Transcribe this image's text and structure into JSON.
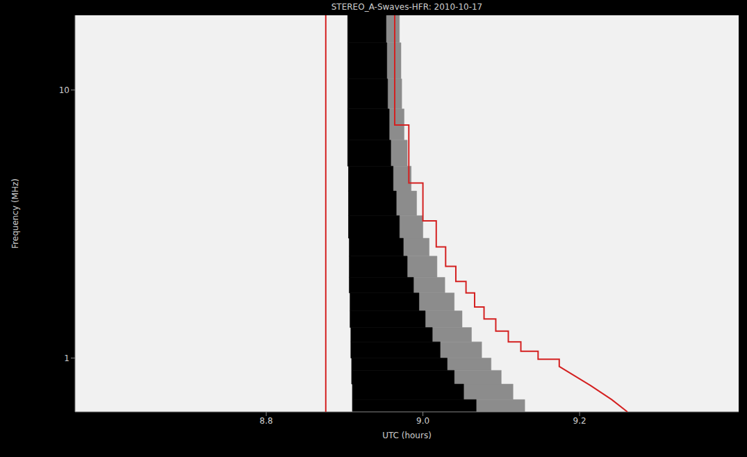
{
  "chart_data": {
    "type": "heatmap",
    "title": "STEREO_A-Swaves-HFR: 2010-10-17",
    "x_label": "UTC (hours)",
    "y_label": "Frequency (MHz)",
    "log": "y",
    "xlim": [
      8.556,
      9.403
    ],
    "ylim": [
      0.63,
      19
    ],
    "xticks": [
      8.8,
      {
        "value": 9,
        "label": "9.0"
      },
      9.2
    ],
    "yticks": [
      1,
      10
    ],
    "heatmap": {
      "freq_edges": [
        0.63,
        0.7,
        0.8,
        0.9,
        1.0,
        1.15,
        1.3,
        1.5,
        1.75,
        2.0,
        2.4,
        2.8,
        3.4,
        4.2,
        5.2,
        6.5,
        8.5,
        11,
        15,
        19
      ],
      "burst_start": [
        8.91,
        8.91,
        8.909,
        8.909,
        8.908,
        8.908,
        8.907,
        8.907,
        8.906,
        8.906,
        8.906,
        8.905,
        8.905,
        8.905,
        8.904,
        8.904,
        8.904,
        8.904,
        8.904
      ],
      "core_end": [
        9.068,
        9.052,
        9.04,
        9.031,
        9.022,
        9.012,
        9.003,
        8.995,
        8.988,
        8.98,
        8.975,
        8.97,
        8.966,
        8.962,
        8.959,
        8.957,
        8.955,
        8.954,
        8.953
      ],
      "fade_end": [
        9.13,
        9.115,
        9.1,
        9.087,
        9.075,
        9.062,
        9.05,
        9.04,
        9.028,
        9.018,
        9.008,
        9.0,
        8.992,
        8.985,
        8.98,
        8.976,
        8.973,
        8.972,
        8.97
      ]
    },
    "series": [
      {
        "color": "#d42020",
        "x": [
          8.876,
          8.876
        ],
        "values": [
          0.63,
          19
        ]
      },
      {
        "color": "#d42020",
        "x": [
          8.964,
          8.964,
          8.982,
          8.982,
          9.0,
          9.0,
          9.017,
          9.017,
          9.029,
          9.029,
          9.042,
          9.042,
          9.055,
          9.055,
          9.066,
          9.066,
          9.078,
          9.078,
          9.093,
          9.093,
          9.109,
          9.109,
          9.125,
          9.125,
          9.147,
          9.147,
          9.174,
          9.174,
          9.214,
          9.241,
          9.261
        ],
        "values": [
          19,
          7.4,
          7.4,
          4.5,
          4.5,
          3.25,
          3.25,
          2.6,
          2.6,
          2.2,
          2.2,
          1.93,
          1.93,
          1.75,
          1.75,
          1.55,
          1.55,
          1.4,
          1.4,
          1.26,
          1.26,
          1.15,
          1.15,
          1.06,
          1.06,
          0.99,
          0.99,
          0.93,
          0.79,
          0.7,
          0.63
        ]
      }
    ]
  }
}
